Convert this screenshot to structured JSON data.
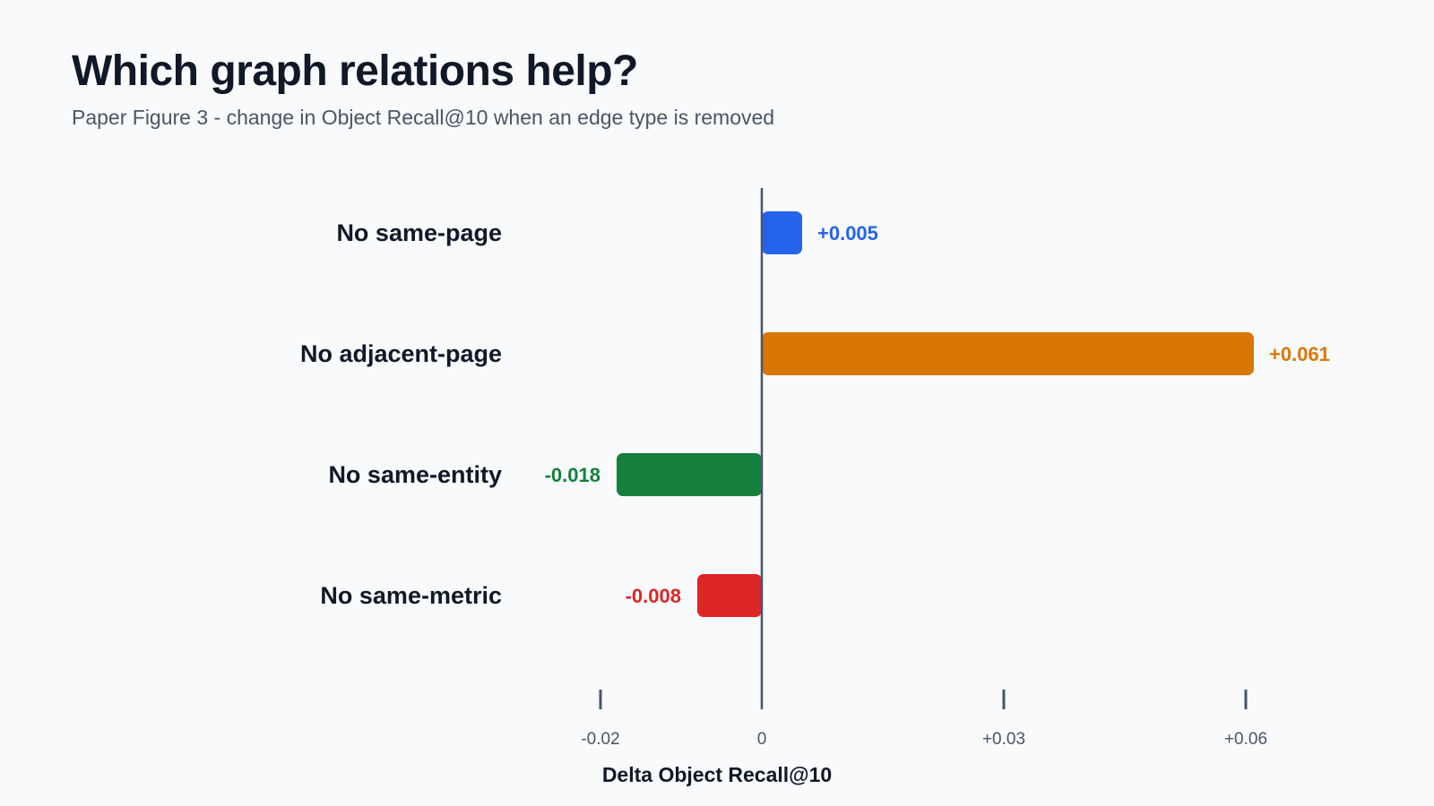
{
  "header": {
    "title": "Which graph relations help?",
    "subtitle": "Paper Figure 3 - change in Object Recall@10 when an edge type is removed"
  },
  "chart_data": {
    "type": "bar",
    "orientation": "horizontal",
    "title": "Which graph relations help?",
    "subtitle": "Paper Figure 3 - change in Object Recall@10 when an edge type is removed",
    "xlabel": "Delta Object Recall@10",
    "ylabel": "",
    "categories": [
      "No same-page",
      "No adjacent-page",
      "No same-entity",
      "No same-metric"
    ],
    "values": [
      0.005,
      0.061,
      -0.018,
      -0.008
    ],
    "value_labels": [
      "+0.005",
      "+0.061",
      "-0.018",
      "-0.008"
    ],
    "colors": [
      "#2563eb",
      "#d97706",
      "#15803d",
      "#dc2626"
    ],
    "xlim": [
      -0.02,
      0.06
    ],
    "xticks": [
      -0.02,
      0,
      0.03,
      0.06
    ],
    "xtick_labels": [
      "-0.02",
      "0",
      "+0.03",
      "+0.06"
    ],
    "grid": false,
    "legend": "none"
  }
}
